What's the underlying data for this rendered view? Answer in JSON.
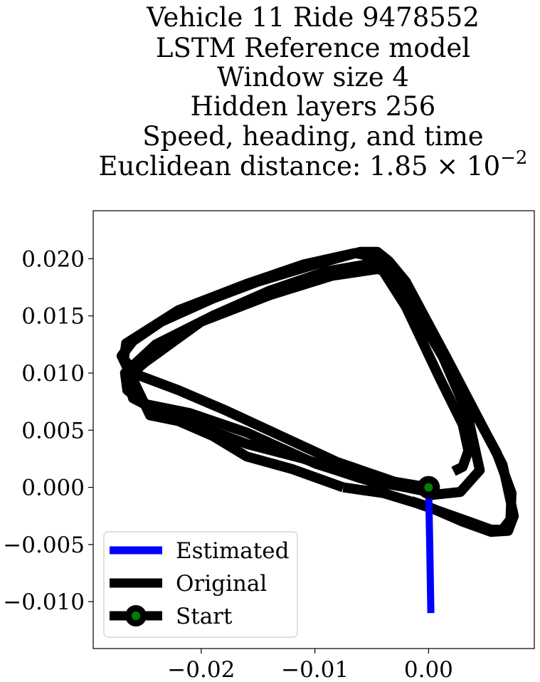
{
  "chart_data": {
    "type": "line",
    "title_lines": [
      "Vehicle 11 Ride 9478552",
      "LSTM Reference model",
      "Window size 4",
      "Hidden layers 256",
      "Speed, heading, and time",
      "Euclidean distance: 1.85 × 10"
    ],
    "title_exponent": "−2",
    "xlabel": "",
    "ylabel": "",
    "xlim": [
      -0.0295,
      0.0093
    ],
    "ylim": [
      -0.0141,
      0.0242
    ],
    "x_ticks": [
      -0.02,
      -0.01,
      0.0
    ],
    "x_tick_labels": [
      "−0.02",
      "−0.01",
      "0.00"
    ],
    "y_ticks": [
      0.02,
      0.015,
      0.01,
      0.005,
      0.0,
      -0.005,
      -0.01
    ],
    "y_tick_labels": [
      "0.020",
      "0.015",
      "0.010",
      "0.005",
      "0.000",
      "−0.005",
      "−0.010"
    ],
    "grid": false,
    "legend_position": "lower-left",
    "series": [
      {
        "name": "Estimated",
        "color": "#0000ff",
        "x": [
          0.0,
          0.0001,
          0.0002
        ],
        "y": [
          0.0,
          -0.005,
          -0.011
        ]
      },
      {
        "name": "Original",
        "color": "#000000",
        "loops": [
          {
            "x": [
              0.0,
              -0.003,
              -0.008,
              -0.013,
              -0.018,
              -0.022,
              -0.0255,
              -0.0268,
              -0.0266,
              -0.022,
              -0.016,
              -0.011,
              -0.0065,
              -0.0055,
              -0.0045,
              -0.002,
              0.001,
              0.003,
              0.0035,
              0.003,
              0.0022
            ],
            "y": [
              0.0,
              0.0005,
              0.0022,
              0.0045,
              0.0068,
              0.0085,
              0.0098,
              0.0112,
              0.0126,
              0.0155,
              0.0178,
              0.0195,
              0.0205,
              0.0203,
              0.0197,
              0.0158,
              0.0095,
              0.0055,
              0.0032,
              0.0018,
              0.0014
            ]
          },
          {
            "x": [
              0.0,
              -0.005,
              -0.01,
              -0.016,
              -0.021,
              -0.025,
              -0.0265,
              -0.0267,
              -0.024,
              -0.019,
              -0.014,
              -0.009,
              -0.0055,
              -0.004,
              -0.002,
              0.001,
              0.0034,
              0.0045,
              0.0028,
              0.0
            ],
            "y": [
              -0.0003,
              0.0005,
              0.0021,
              0.0048,
              0.0065,
              0.0073,
              0.0085,
              0.01,
              0.0125,
              0.015,
              0.0172,
              0.0189,
              0.0195,
              0.0194,
              0.0175,
              0.012,
              0.0065,
              0.0015,
              -0.0004,
              -0.0007
            ]
          },
          {
            "x": [
              0.0,
              -0.006,
              -0.011,
              -0.016,
              -0.02,
              -0.0235,
              -0.026,
              -0.0265,
              -0.025,
              -0.02,
              -0.014,
              -0.0085,
              -0.0045,
              -0.0035,
              -0.002,
              0.0,
              0.003,
              0.006,
              0.0073,
              0.0072,
              0.0065,
              0.0055,
              0.003,
              -0.001,
              -0.004,
              -0.0075
            ],
            "y": [
              -0.0004,
              0.0008,
              0.0025,
              0.0038,
              0.0053,
              0.0065,
              0.0078,
              0.0096,
              0.0109,
              0.0145,
              0.0168,
              0.0185,
              0.0191,
              0.0188,
              0.0168,
              0.0135,
              0.0085,
              0.003,
              -0.0005,
              -0.0028,
              -0.0037,
              -0.0037,
              -0.0028,
              -0.0014,
              -0.0005,
              0.0
            ]
          },
          {
            "x": [
              -0.0075,
              -0.012,
              -0.016,
              -0.019,
              -0.022,
              -0.0245,
              -0.027,
              -0.026,
              -0.0235,
              -0.019,
              -0.015,
              -0.01,
              -0.006,
              -0.0045,
              -0.0035,
              -0.002,
              0.0015,
              0.0045,
              0.0065,
              0.0075,
              0.007,
              0.0055,
              0.003,
              0.0,
              -0.0015
            ],
            "y": [
              0.0,
              0.0016,
              0.0027,
              0.0045,
              0.0058,
              0.0063,
              0.0115,
              0.0128,
              0.0145,
              0.0165,
              0.018,
              0.0195,
              0.0206,
              0.0206,
              0.0198,
              0.018,
              0.0115,
              0.0058,
              0.002,
              -0.0025,
              -0.0038,
              -0.0039,
              -0.003,
              -0.0017,
              -0.0012
            ]
          }
        ]
      },
      {
        "name": "Start",
        "color": "#000000",
        "marker_color": "#008000",
        "x": [
          0.0
        ],
        "y": [
          0.0
        ]
      }
    ]
  }
}
